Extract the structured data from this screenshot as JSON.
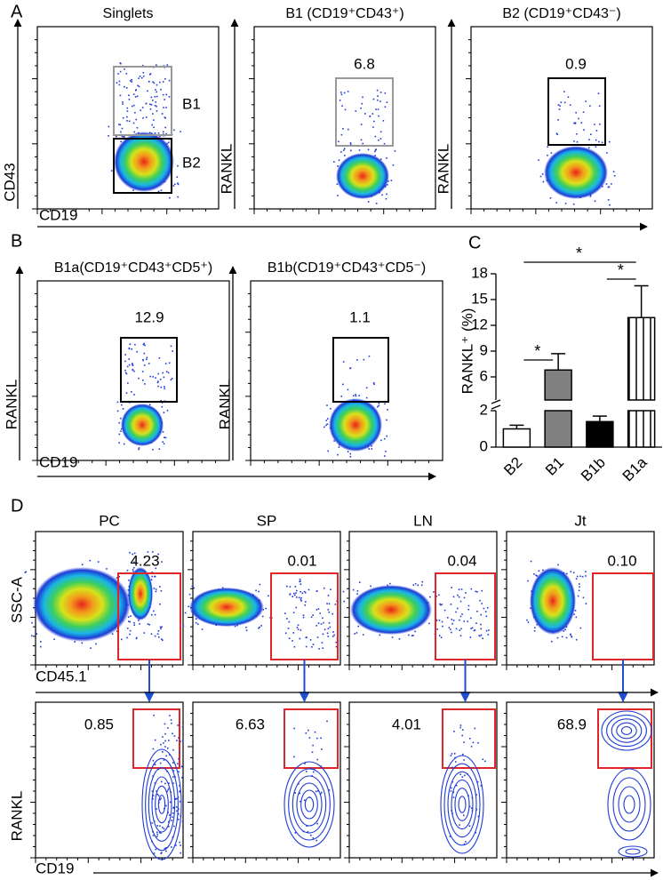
{
  "panel_labels": [
    "A",
    "B",
    "C",
    "D"
  ],
  "panel_a": {
    "x_label": "CD19",
    "y_labels": [
      "CD43",
      "RANKL",
      "RANKL"
    ],
    "plots": [
      {
        "title": "Singlets",
        "gates": [
          "B1",
          "B2"
        ]
      },
      {
        "title": "B1 (CD19⁺CD43⁺)",
        "gate_value": "6.8"
      },
      {
        "title": "B2 (CD19⁺CD43⁻)",
        "gate_value": "0.9"
      }
    ]
  },
  "panel_b": {
    "x_label": "CD19",
    "y_labels": [
      "RANKL",
      "RANKL"
    ],
    "plots": [
      {
        "title": "B1a(CD19⁺CD43⁺CD5⁺)",
        "gate_value": "12.9"
      },
      {
        "title": "B1b(CD19⁺CD43⁺CD5⁻)",
        "gate_value": "1.1"
      }
    ]
  },
  "panel_d": {
    "columns": [
      "PC",
      "SP",
      "LN",
      "Jt"
    ],
    "top_values": [
      "4.23",
      "0.01",
      "0.04",
      "0.10"
    ],
    "bottom_values": [
      "0.85",
      "6.63",
      "4.01",
      "68.9"
    ],
    "top_y_label": "SSC-A",
    "top_x_label": "CD45.1",
    "bottom_y_label": "RANKL",
    "bottom_x_label": "CD19"
  },
  "chart_data": {
    "type": "bar",
    "y_label": "RANKL⁺ (%)",
    "categories": [
      "B2",
      "B1",
      "B1b",
      "B1a"
    ],
    "values": [
      1.0,
      6.8,
      1.4,
      12.9
    ],
    "errors": [
      0.2,
      1.9,
      0.3,
      3.7
    ],
    "colors": [
      "#ffffff",
      "#808080",
      "#000000",
      "#ffffff"
    ],
    "patterns": [
      "none",
      "none",
      "none",
      "vertical-lines"
    ],
    "ylim": [
      0,
      18
    ],
    "axis_break": [
      2,
      6
    ],
    "yticks": [
      0,
      2,
      6,
      9,
      12,
      15,
      18
    ],
    "significance": [
      {
        "label": "*",
        "between": [
          "B2",
          "B1"
        ]
      },
      {
        "label": "*",
        "between": [
          "B1b",
          "B1a"
        ]
      },
      {
        "label": "*",
        "between": [
          "B2",
          "B1a"
        ]
      }
    ]
  }
}
